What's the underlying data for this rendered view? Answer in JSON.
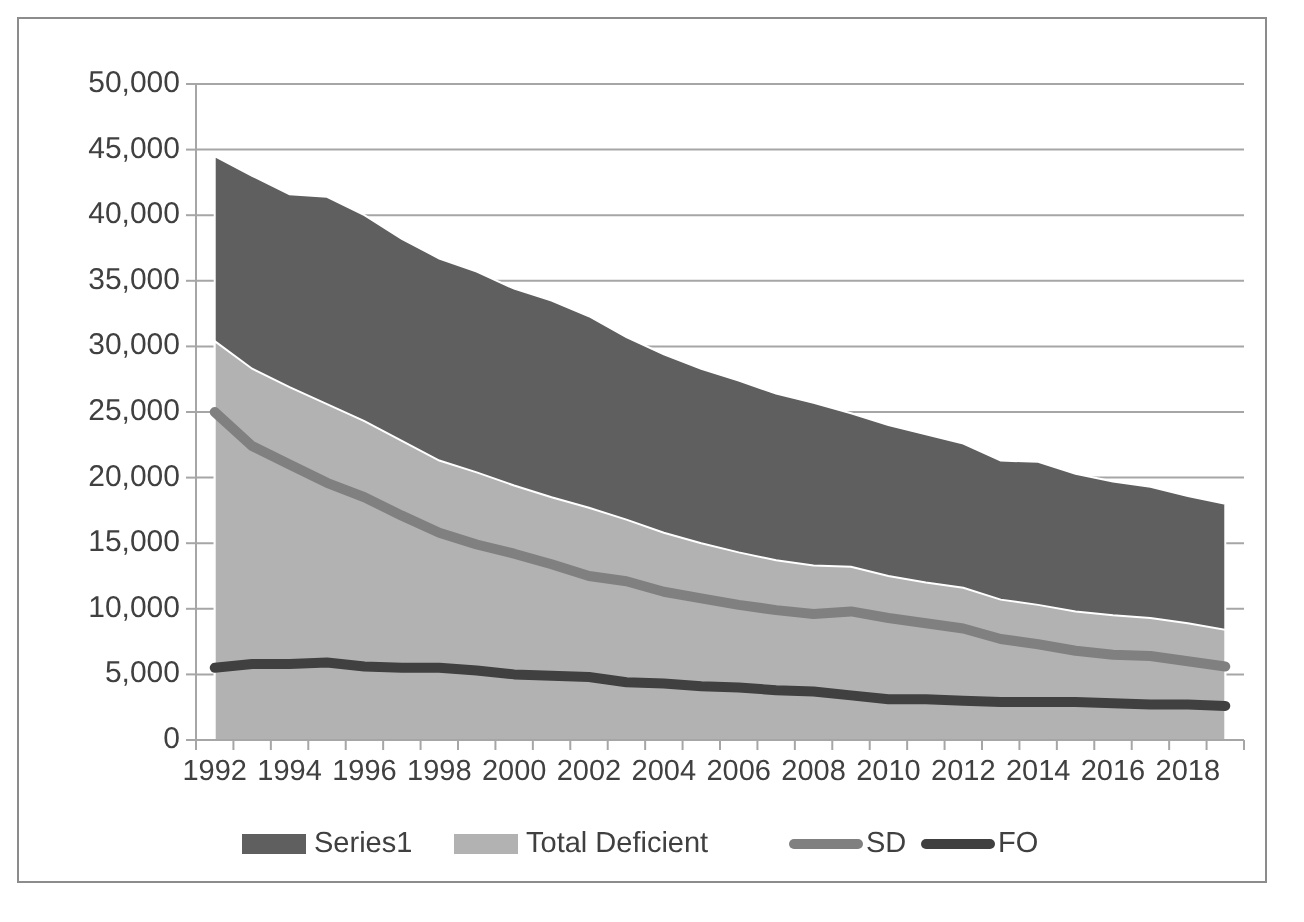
{
  "chart_data": {
    "type": "area",
    "categories": [
      "1992",
      null,
      "1994",
      null,
      "1996",
      null,
      "1998",
      null,
      "2000",
      null,
      "2002",
      null,
      "2004",
      null,
      "2006",
      null,
      "2008",
      null,
      "2010",
      null,
      "2012",
      null,
      "2014",
      null,
      "2016",
      null,
      "2018",
      null
    ],
    "series": [
      {
        "name": "Series1",
        "color": "#5f5f5f",
        "values": [
          44500,
          43000,
          41600,
          41400,
          40000,
          38200,
          36700,
          35700,
          34400,
          33500,
          32300,
          30700,
          29400,
          28300,
          27400,
          26400,
          25700,
          24900,
          24000,
          23300,
          22600,
          21300,
          21200,
          20300,
          19700,
          19300,
          18600,
          18000
        ]
      },
      {
        "name": "Total Deficient",
        "color": "#b2b2b2",
        "values": [
          30400,
          28300,
          26900,
          25600,
          24300,
          22800,
          21300,
          20400,
          19400,
          18500,
          17700,
          16800,
          15800,
          15000,
          14300,
          13700,
          13300,
          13200,
          12500,
          12000,
          11600,
          10700,
          10300,
          9800,
          9500,
          9300,
          8900,
          8400
        ]
      },
      {
        "name": "SD",
        "type": "line",
        "color": "#808080",
        "values": [
          25000,
          22400,
          21000,
          19600,
          18500,
          17100,
          15800,
          14900,
          14200,
          13400,
          12500,
          12100,
          11300,
          10800,
          10300,
          9900,
          9600,
          9800,
          9300,
          8900,
          8500,
          7700,
          7300,
          6800,
          6500,
          6400,
          6000,
          5600
        ]
      },
      {
        "name": "FO",
        "type": "line",
        "color": "#404040",
        "values": [
          5500,
          5800,
          5800,
          5900,
          5600,
          5500,
          5500,
          5300,
          5000,
          4900,
          4800,
          4400,
          4300,
          4100,
          4000,
          3800,
          3700,
          3400,
          3100,
          3100,
          3000,
          2900,
          2900,
          2900,
          2800,
          2700,
          2700,
          2600
        ]
      }
    ],
    "ylim": [
      0,
      50000
    ],
    "yticks": [
      {
        "value": 0,
        "label": "0"
      },
      {
        "value": 5000,
        "label": "5,000"
      },
      {
        "value": 10000,
        "label": "10,000"
      },
      {
        "value": 15000,
        "label": "15,000"
      },
      {
        "value": 20000,
        "label": "20,000"
      },
      {
        "value": 25000,
        "label": "25,000"
      },
      {
        "value": 30000,
        "label": "30,000"
      },
      {
        "value": 35000,
        "label": "35,000"
      },
      {
        "value": 40000,
        "label": "40,000"
      },
      {
        "value": 45000,
        "label": "45,000"
      },
      {
        "value": 50000,
        "label": "50,000"
      }
    ],
    "grid": "y",
    "legend": "bottom",
    "line_style": "solid",
    "marker": "none"
  }
}
